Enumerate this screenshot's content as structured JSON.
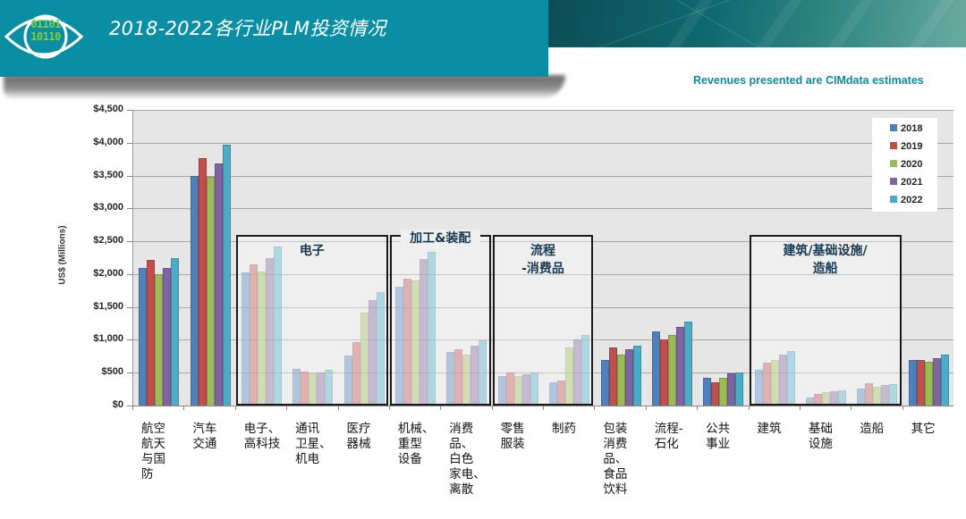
{
  "header": {
    "title": "2018-2022各行业PLM投资情况",
    "logo_text_line1": "01101",
    "logo_text_line2": "10110",
    "note": "Revenues presented are CIMdata estimates"
  },
  "colors": {
    "title_bar": "#0a8ea4",
    "note": "#0d8aa0",
    "series": [
      "#4f81bd",
      "#c0504d",
      "#9bbb59",
      "#8064a2",
      "#4bacc6"
    ]
  },
  "groups": [
    {
      "title": "电子"
    },
    {
      "title": "加工&装配"
    },
    {
      "title": "流程\n-消费品"
    },
    {
      "title": "建筑/基础设施/\n造船"
    }
  ],
  "chart_data": {
    "type": "bar",
    "title": "2018-2022各行业PLM投资情况",
    "subtitle": "Revenues presented are CIMdata estimates",
    "xlabel": "",
    "ylabel": "US$ (Millions)",
    "ylim": [
      0,
      4500
    ],
    "yticks": [
      "$0",
      "$500",
      "$1,000",
      "$1,500",
      "$2,000",
      "$2,500",
      "$3,000",
      "$3,500",
      "$4,000",
      "$4,500"
    ],
    "grid": true,
    "legend_position": "top-right",
    "categories": [
      "航空\n航天\n与国\n防",
      "汽车\n交通",
      "电子、\n高科技",
      "通讯\n卫星、\n机电",
      "医疗\n器械",
      "机械、\n重型\n设备",
      "消费\n品、\n白色\n家电、\n离散",
      "零售\n服装",
      "制药",
      "包装\n消费\n品、\n食品\n饮料",
      "流程-\n石化",
      "公共\n事业",
      "建筑",
      "基础\n设施",
      "造船",
      "其它"
    ],
    "series": [
      {
        "name": "2018",
        "values": [
          2100,
          3500,
          2020,
          560,
          760,
          1810,
          820,
          450,
          360,
          700,
          1130,
          420,
          540,
          120,
          260,
          700
        ]
      },
      {
        "name": "2019",
        "values": [
          2220,
          3770,
          2150,
          520,
          960,
          1930,
          850,
          500,
          380,
          880,
          1010,
          350,
          650,
          180,
          340,
          700
        ]
      },
      {
        "name": "2020",
        "values": [
          2000,
          3480,
          2040,
          490,
          1420,
          1900,
          780,
          450,
          890,
          770,
          1070,
          420,
          700,
          200,
          290,
          670
        ]
      },
      {
        "name": "2021",
        "values": [
          2090,
          3680,
          2240,
          500,
          1600,
          2230,
          910,
          480,
          1000,
          850,
          1190,
          490,
          770,
          220,
          310,
          720
        ]
      },
      {
        "name": "2022",
        "values": [
          2250,
          3970,
          2420,
          540,
          1730,
          2340,
          990,
          510,
          1080,
          910,
          1280,
          510,
          830,
          230,
          330,
          780
        ]
      }
    ],
    "highlight_groups": [
      {
        "label": "电子",
        "categories": [
          "电子、高科技",
          "通讯卫星、机电",
          "医疗器械"
        ]
      },
      {
        "label": "加工&装配",
        "categories": [
          "机械、重型设备",
          "消费品、白色家电、离散"
        ]
      },
      {
        "label": "流程-消费品",
        "categories": [
          "零售服装",
          "制药"
        ]
      },
      {
        "label": "建筑/基础设施/造船",
        "categories": [
          "建筑",
          "基础设施",
          "造船"
        ]
      }
    ]
  }
}
